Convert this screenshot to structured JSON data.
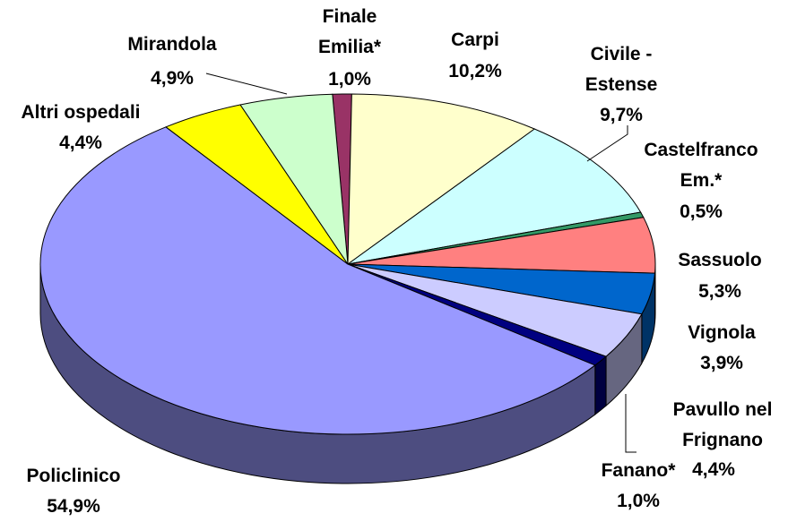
{
  "chart_data": {
    "type": "pie",
    "categories": [
      "Finale Emilia*",
      "Carpi",
      "Civile - Estense",
      "Castelfranco Em.*",
      "Sassuolo",
      "Vignola",
      "Pavullo nel Frignano",
      "Fanano*",
      "Policlinico",
      "Altri ospedali",
      "Mirandola"
    ],
    "values": [
      1.0,
      10.2,
      9.7,
      0.5,
      5.3,
      3.9,
      4.4,
      1.0,
      54.9,
      4.4,
      4.9
    ],
    "value_labels": [
      "1,0%",
      "10,2%",
      "9,7%",
      "0,5%",
      "5,3%",
      "3,9%",
      "4,4%",
      "1,0%",
      "54,9%",
      "4,4%",
      "4,9%"
    ],
    "colors": [
      "#993366",
      "#ffffcc",
      "#ccffff",
      "#339966",
      "#ff8080",
      "#0066cc",
      "#ccccff",
      "#000080",
      "#9999ff",
      "#ffff00",
      "#ccffcc"
    ]
  }
}
